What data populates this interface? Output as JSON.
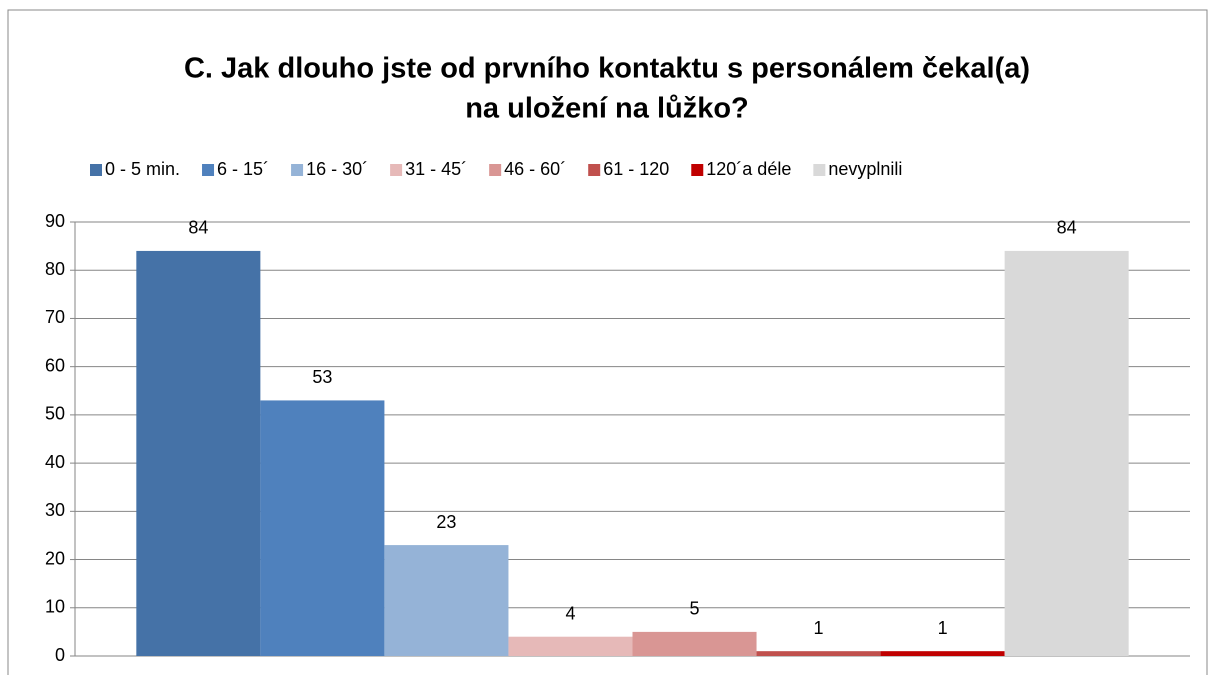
{
  "chart_data": {
    "type": "bar",
    "title": [
      "C. Jak dlouho jste od prvního kontaktu s personálem čekal(a)",
      "na uložení na lůžko?"
    ],
    "categories": [
      null
    ],
    "series": [
      {
        "name": "0 - 5 min.",
        "color": "#4572a7",
        "values": [
          84
        ]
      },
      {
        "name": "6 - 15´",
        "color": "#4f81bd",
        "values": [
          53
        ]
      },
      {
        "name": "16 - 30´",
        "color": "#95b3d7",
        "values": [
          23
        ]
      },
      {
        "name": "31 - 45´",
        "color": "#e6b9b8",
        "values": [
          4
        ]
      },
      {
        "name": "46 - 60´",
        "color": "#d99694",
        "values": [
          5
        ]
      },
      {
        "name": "61 - 120",
        "color": "#c0504d",
        "values": [
          1
        ]
      },
      {
        "name": "120´a déle",
        "color": "#c00000",
        "values": [
          1
        ]
      },
      {
        "name": "nevyplnili",
        "color": "#d9d9d9",
        "values": [
          84
        ]
      }
    ],
    "ylim": [
      0,
      90
    ],
    "yticks": [
      0,
      10,
      20,
      30,
      40,
      50,
      60,
      70,
      80,
      90
    ],
    "grid": true,
    "legend": "top",
    "data_labels": true
  }
}
